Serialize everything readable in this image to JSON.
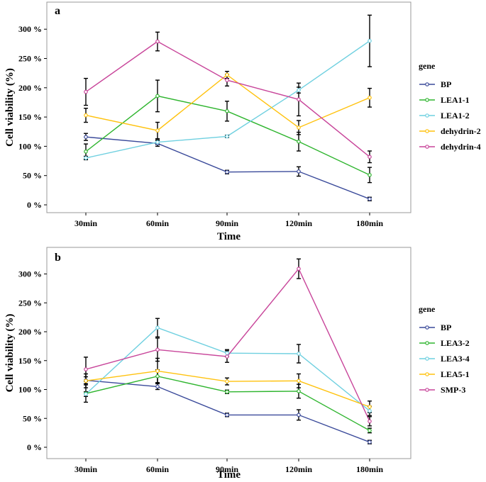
{
  "chart_data": [
    {
      "panel_label": "a",
      "type": "line",
      "xlabel": "Time",
      "ylabel": "Cell viability (%)",
      "categories": [
        "30min",
        "60min",
        "90min",
        "120min",
        "180min"
      ],
      "ylim": [
        0,
        325
      ],
      "yticks": [
        0,
        50,
        100,
        150,
        200,
        250,
        300
      ],
      "ytick_labels": [
        "0 %",
        "50 %",
        "100 %",
        "150 %",
        "200 %",
        "250 %",
        "300 %"
      ],
      "legend_title": "gene",
      "series": [
        {
          "name": "BP",
          "color": "#3a4a9a",
          "values": [
            116,
            105,
            56,
            57,
            10
          ],
          "errors": [
            6,
            5,
            3,
            8,
            3
          ]
        },
        {
          "name": "LEA1-1",
          "color": "#2fb52f",
          "values": [
            91,
            186,
            160,
            108,
            51
          ],
          "errors": [
            13,
            27,
            17,
            16,
            13
          ]
        },
        {
          "name": "LEA1-2",
          "color": "#6fd0e0",
          "values": [
            80,
            107,
            117,
            196,
            280
          ],
          "errors": [
            3,
            4,
            2,
            5,
            44
          ]
        },
        {
          "name": "dehydrin-2",
          "color": "#ffc20e",
          "values": [
            153,
            127,
            222,
            132,
            183
          ],
          "errors": [
            12,
            14,
            6,
            12,
            16
          ]
        },
        {
          "name": "dehydrin-4",
          "color": "#c8459a",
          "values": [
            193,
            279,
            213,
            180,
            82
          ],
          "errors": [
            23,
            16,
            10,
            28,
            10
          ]
        }
      ]
    },
    {
      "panel_label": "b",
      "type": "line",
      "xlabel": "Time",
      "ylabel": "Cell viability (%)",
      "categories": [
        "30min",
        "60min",
        "90min",
        "120min",
        "180min"
      ],
      "ylim": [
        0,
        325
      ],
      "yticks": [
        0,
        50,
        100,
        150,
        200,
        250,
        300
      ],
      "ytick_labels": [
        "0 %",
        "50 %",
        "100 %",
        "150 %",
        "200 %",
        "250 %",
        "300 %"
      ],
      "legend_title": "gene",
      "series": [
        {
          "name": "BP",
          "color": "#3a4a9a",
          "values": [
            116,
            105,
            56,
            56,
            9
          ],
          "errors": [
            6,
            5,
            3,
            9,
            3
          ]
        },
        {
          "name": "LEA3-2",
          "color": "#2fb52f",
          "values": [
            93,
            123,
            96,
            97,
            29
          ],
          "errors": [
            15,
            11,
            3,
            12,
            4
          ]
        },
        {
          "name": "LEA3-4",
          "color": "#6fd0e0",
          "values": [
            92,
            207,
            163,
            162,
            63
          ],
          "errors": [
            4,
            16,
            6,
            16,
            8
          ]
        },
        {
          "name": "LEA5-1",
          "color": "#ffc20e",
          "values": [
            115,
            132,
            114,
            115,
            70
          ],
          "errors": [
            12,
            22,
            6,
            12,
            10
          ]
        },
        {
          "name": "SMP-3",
          "color": "#c8459a",
          "values": [
            135,
            169,
            157,
            309,
            45
          ],
          "errors": [
            21,
            20,
            10,
            17,
            8
          ]
        }
      ]
    }
  ]
}
